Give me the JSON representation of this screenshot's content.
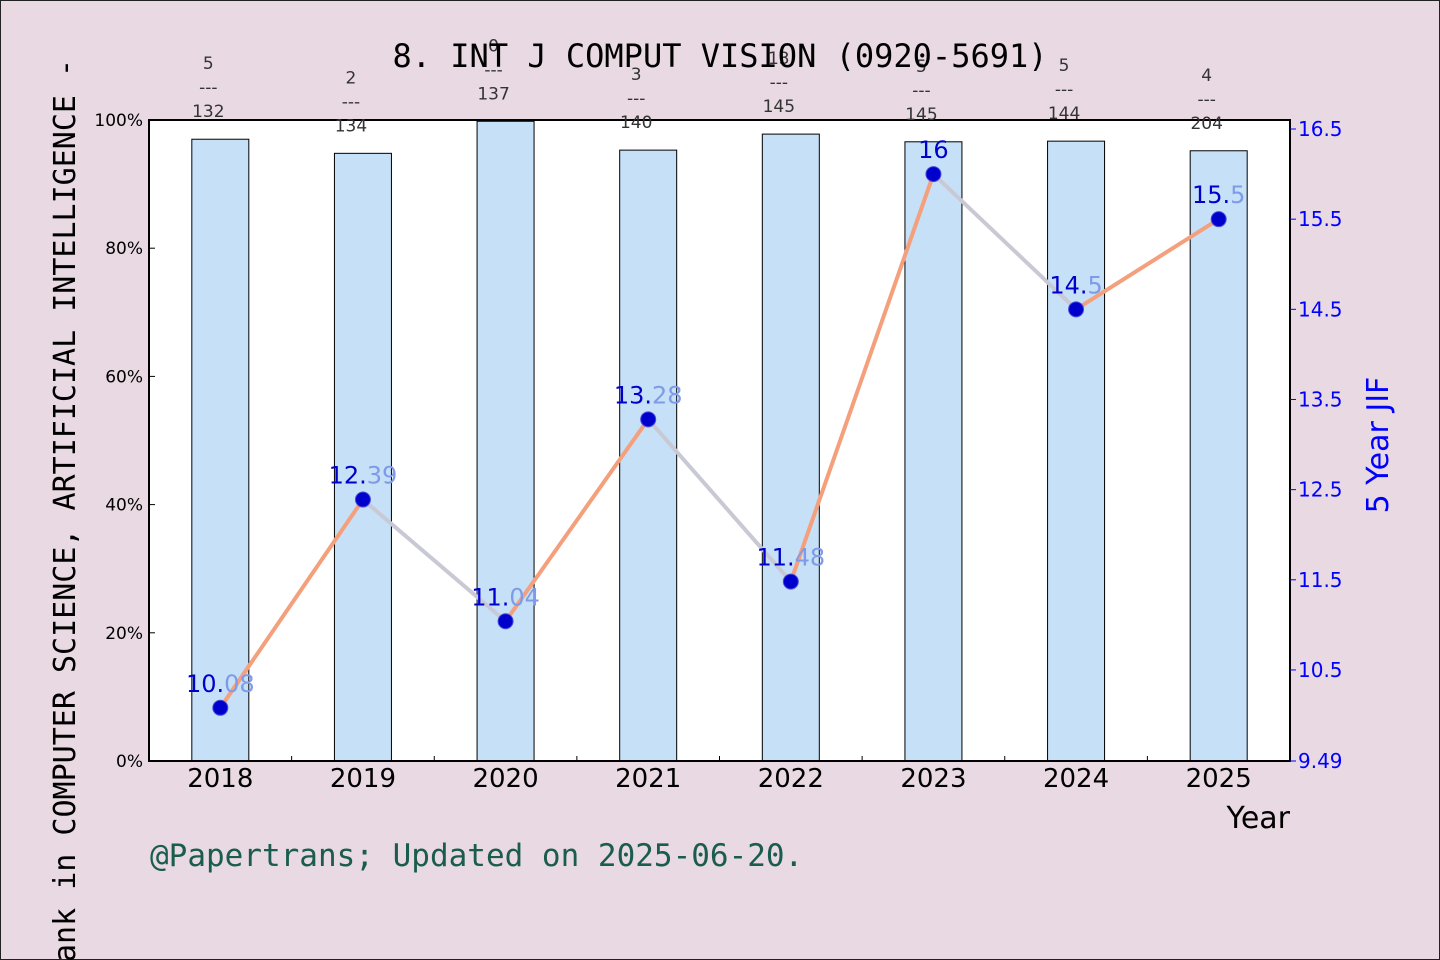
{
  "colors": {
    "background": "#e8d9e2",
    "plot_background": "#ffffff",
    "bar_fill": "#c5e0f7",
    "line_rise": "#f4a07c",
    "line_fall": "#c9c9d6",
    "marker": "#0000cc",
    "right_axis": "#0000ff",
    "value_label_int": "#0000cc",
    "value_label_frac": "#7f9be8",
    "footer": "#1a5c4e"
  },
  "footer": "@Papertrans; Updated on 2025-06-20.",
  "chart_data": {
    "type": "bar",
    "title": "8. INT J COMPUT VISION (0920-5691)",
    "xlabel": "Year",
    "ylabel": "ank in COMPUTER SCIENCE, ARTIFICIAL INTELLIGENCE -",
    "y2label": "5 Year JIF",
    "categories": [
      "2018",
      "2019",
      "2020",
      "2021",
      "2022",
      "2023",
      "2024",
      "2025"
    ],
    "ylim": [
      0,
      100
    ],
    "y_ticks": [
      "0%",
      "20%",
      "40%",
      "60%",
      "80%",
      "100%"
    ],
    "y2lim": [
      9.49,
      16.6
    ],
    "y2_ticks": [
      "9.49",
      "10.5",
      "11.5",
      "12.5",
      "13.5",
      "14.5",
      "15.5",
      "16.5"
    ],
    "y2_tick_values": [
      9.49,
      10.5,
      11.5,
      12.5,
      13.5,
      14.5,
      15.5,
      16.5
    ],
    "series": [
      {
        "type": "bar",
        "values": [
          97.0,
          94.8,
          99.8,
          95.3,
          97.8,
          96.6,
          96.7,
          95.2
        ],
        "rank_numerators": [
          "5",
          "2",
          "0",
          "3",
          "13",
          "5",
          "5",
          "4"
        ],
        "rank_denominators": [
          "132",
          "134",
          "137",
          "140",
          "145",
          "145",
          "144",
          "204"
        ],
        "rank_separator": "---"
      },
      {
        "type": "line",
        "axis": "right",
        "values": [
          10.08,
          12.39,
          11.04,
          13.28,
          11.48,
          16,
          14.5,
          15.5
        ],
        "labels": [
          "10.08",
          "12.39",
          "11.04",
          "13.28",
          "11.48",
          "16",
          "14.5",
          "15.5"
        ]
      }
    ],
    "grid": false
  }
}
